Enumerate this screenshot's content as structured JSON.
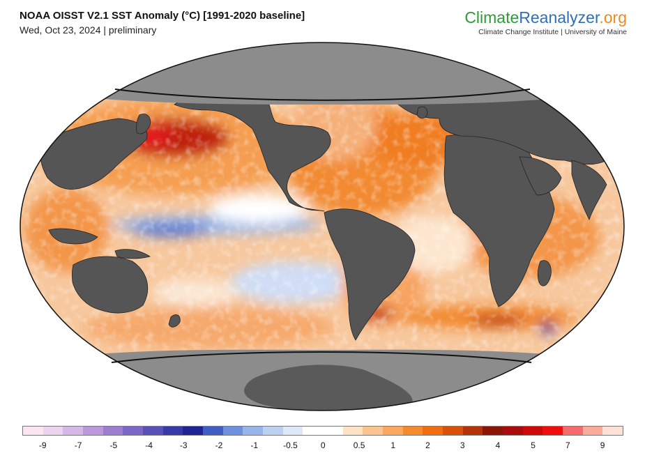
{
  "header": {
    "title": "NOAA OISST V2.1 SST Anomaly (°C) [1991-2020 baseline]",
    "subtitle": "Wed, Oct 23, 2024 | preliminary"
  },
  "brand": {
    "name_part1": "Climate",
    "name_part2": "Reanalyzer",
    "name_part3": ".org",
    "tagline": "Climate Change Institute | University of Maine"
  },
  "legend": {
    "colors": [
      "#fbe6f0",
      "#ecd3ee",
      "#d6b8e6",
      "#bb98dc",
      "#9c7ed0",
      "#7b68c6",
      "#5a51b8",
      "#383aa6",
      "#1e2590",
      "#3f5fc3",
      "#6f90dd",
      "#97b5ea",
      "#bcd0f2",
      "#dde8f8",
      "#ffffff",
      "#ffffff",
      "#fde2c4",
      "#fbc590",
      "#f9a85d",
      "#f58a2d",
      "#ef6c10",
      "#d9500a",
      "#b23408",
      "#8a1606",
      "#a80c0c",
      "#cd0808",
      "#ee0e0e",
      "#f46c6c",
      "#f9aa98",
      "#fde0d6"
    ],
    "ticks": [
      {
        "label": "-9",
        "pos": 0.0339
      },
      {
        "label": "-7",
        "pos": 0.0929
      },
      {
        "label": "-5",
        "pos": 0.1518
      },
      {
        "label": "-4",
        "pos": 0.2106
      },
      {
        "label": "-3",
        "pos": 0.2683
      },
      {
        "label": "-2",
        "pos": 0.3271
      },
      {
        "label": "-1",
        "pos": 0.386
      },
      {
        "label": "-0.5",
        "pos": 0.446
      },
      {
        "label": "0",
        "pos": 0.5002
      },
      {
        "label": "0.5",
        "pos": 0.5604
      },
      {
        "label": "1",
        "pos": 0.6169
      },
      {
        "label": "2",
        "pos": 0.6745
      },
      {
        "label": "3",
        "pos": 0.7322
      },
      {
        "label": "4",
        "pos": 0.7911
      },
      {
        "label": "5",
        "pos": 0.8499
      },
      {
        "label": "7",
        "pos": 0.9076
      },
      {
        "label": "9",
        "pos": 0.9653
      }
    ]
  },
  "map_colors": {
    "land": "#555555",
    "polar_cap": "#8c8c8c",
    "ocean_base": "#f7c89e",
    "coast": "#222222",
    "frame": "#111111"
  }
}
